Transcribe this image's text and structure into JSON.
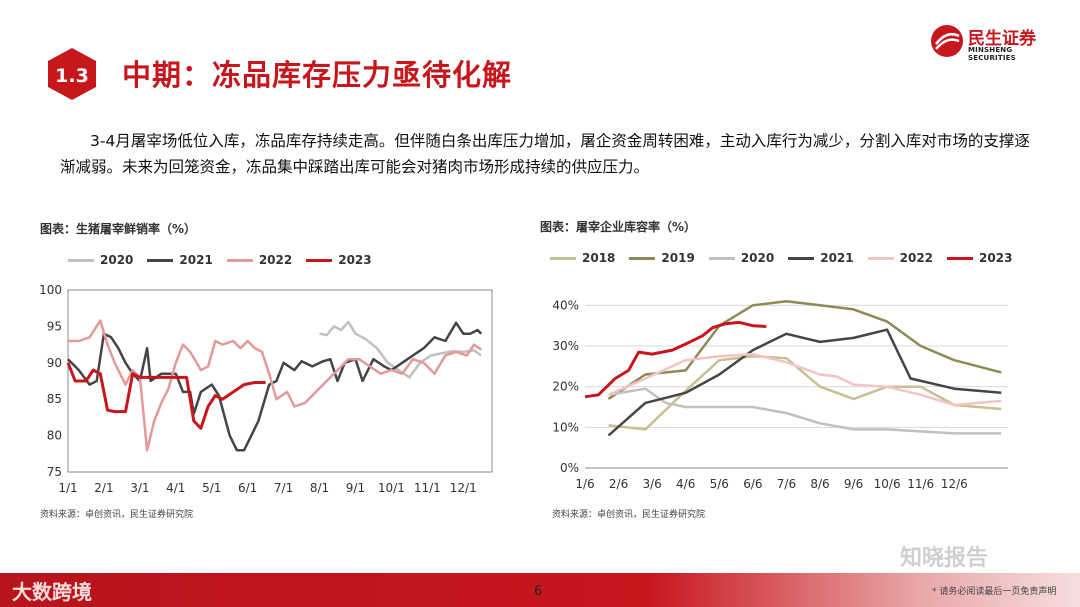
{
  "header": {
    "section_number": "1.3",
    "title": "中期：冻品库存压力亟待化解",
    "logo_name": "民生证券",
    "logo_en": "MINSHENG SECURITIES"
  },
  "intro_text": "3-4月屠宰场低位入库，冻品库存持续走高。但伴随白条出库压力增加，屠企资金周转困难，主动入库行为减少，分割入库对市场的支撑逐渐减弱。未来为回笼资金，冻品集中踩踏出库可能会对猪肉市场形成持续的供应压力。",
  "footer": {
    "page": "6",
    "disclaimer": "* 请务必阅读最后一页免责声明",
    "watermark_left": "大数跨境",
    "watermark_right": "知晓报告"
  },
  "colors": {
    "brand": "#c8161d",
    "y2018": "#c8c092",
    "y2019": "#8f8a55",
    "y2020": "#c0c0c0",
    "y2021": "#454545",
    "y2022": "#e29a98",
    "y2023": "#c8161d"
  },
  "chart_data": [
    {
      "type": "line",
      "title": "图表：生猪屠宰鲜销率（%）",
      "source": "资料来源：卓创资讯，民生证券研究院",
      "xlabel": "",
      "ylabel": "",
      "ylim": [
        75,
        100
      ],
      "yticks": [
        75,
        80,
        85,
        90,
        95,
        100
      ],
      "categories": [
        "1/1",
        "2/1",
        "3/1",
        "4/1",
        "5/1",
        "6/1",
        "7/1",
        "8/1",
        "9/1",
        "10/1",
        "11/1",
        "12/1"
      ],
      "series": [
        {
          "name": "2020",
          "color": "#c0c0c0",
          "points": [
            [
              7.0,
              94
            ],
            [
              7.2,
              93.8
            ],
            [
              7.4,
              95
            ],
            [
              7.6,
              94.5
            ],
            [
              7.8,
              95.6
            ],
            [
              8.0,
              94
            ],
            [
              8.3,
              93.2
            ],
            [
              8.6,
              92
            ],
            [
              8.9,
              90
            ],
            [
              9.2,
              89
            ],
            [
              9.5,
              88
            ],
            [
              9.8,
              90
            ],
            [
              10.1,
              91
            ],
            [
              10.4,
              91.3
            ],
            [
              10.7,
              91.6
            ],
            [
              11.0,
              91.5
            ],
            [
              11.3,
              91.7
            ],
            [
              11.5,
              91
            ]
          ]
        },
        {
          "name": "2021",
          "color": "#454545",
          "points": [
            [
              0,
              90.5
            ],
            [
              0.3,
              89
            ],
            [
              0.6,
              87
            ],
            [
              0.8,
              87.5
            ],
            [
              1.0,
              94
            ],
            [
              1.2,
              93.5
            ],
            [
              1.4,
              92
            ],
            [
              1.6,
              90
            ],
            [
              1.8,
              88.5
            ],
            [
              2.0,
              87.5
            ],
            [
              2.2,
              92
            ],
            [
              2.3,
              87.5
            ],
            [
              2.6,
              88.5
            ],
            [
              3.0,
              88.5
            ],
            [
              3.2,
              86
            ],
            [
              3.4,
              86
            ],
            [
              3.5,
              83
            ],
            [
              3.7,
              86
            ],
            [
              4.0,
              87
            ],
            [
              4.2,
              85.5
            ],
            [
              4.5,
              80
            ],
            [
              4.7,
              78
            ],
            [
              4.9,
              78
            ],
            [
              5.1,
              80
            ],
            [
              5.3,
              82
            ],
            [
              5.6,
              87
            ],
            [
              5.8,
              87.5
            ],
            [
              6.0,
              90
            ],
            [
              6.3,
              89
            ],
            [
              6.5,
              90.2
            ],
            [
              6.8,
              89.5
            ],
            [
              7.1,
              90.2
            ],
            [
              7.3,
              90.5
            ],
            [
              7.5,
              87.5
            ],
            [
              7.7,
              90
            ],
            [
              8.0,
              90.5
            ],
            [
              8.2,
              87.5
            ],
            [
              8.5,
              90.5
            ],
            [
              8.8,
              89.5
            ],
            [
              9.0,
              89
            ],
            [
              9.3,
              90
            ],
            [
              9.6,
              91
            ],
            [
              9.9,
              92
            ],
            [
              10.2,
              93.5
            ],
            [
              10.5,
              93
            ],
            [
              10.8,
              95.5
            ],
            [
              11.0,
              94
            ],
            [
              11.2,
              94
            ],
            [
              11.4,
              94.5
            ],
            [
              11.5,
              94
            ]
          ]
        },
        {
          "name": "2022",
          "color": "#e29a98",
          "points": [
            [
              0,
              93
            ],
            [
              0.3,
              93
            ],
            [
              0.6,
              93.5
            ],
            [
              0.9,
              95.8
            ],
            [
              1.1,
              92.5
            ],
            [
              1.3,
              90
            ],
            [
              1.6,
              87
            ],
            [
              1.8,
              89
            ],
            [
              2.0,
              88
            ],
            [
              2.2,
              78
            ],
            [
              2.4,
              82
            ],
            [
              2.6,
              84.5
            ],
            [
              2.8,
              86.5
            ],
            [
              3.0,
              90
            ],
            [
              3.2,
              92.5
            ],
            [
              3.4,
              91.5
            ],
            [
              3.7,
              89
            ],
            [
              3.9,
              89.5
            ],
            [
              4.1,
              93
            ],
            [
              4.3,
              92.5
            ],
            [
              4.6,
              93
            ],
            [
              4.8,
              92
            ],
            [
              5.0,
              93
            ],
            [
              5.2,
              92
            ],
            [
              5.4,
              91.5
            ],
            [
              5.6,
              88.5
            ],
            [
              5.8,
              85
            ],
            [
              6.1,
              86
            ],
            [
              6.3,
              84
            ],
            [
              6.6,
              84.5
            ],
            [
              6.9,
              86
            ],
            [
              7.2,
              87.5
            ],
            [
              7.5,
              89
            ],
            [
              7.8,
              90.5
            ],
            [
              8.1,
              90.5
            ],
            [
              8.4,
              89.5
            ],
            [
              8.7,
              88.5
            ],
            [
              9.0,
              89
            ],
            [
              9.3,
              88.5
            ],
            [
              9.6,
              90.5
            ],
            [
              9.9,
              90
            ],
            [
              10.2,
              88.5
            ],
            [
              10.5,
              91
            ],
            [
              10.8,
              91.5
            ],
            [
              11.1,
              91
            ],
            [
              11.3,
              92.5
            ],
            [
              11.5,
              91.8
            ]
          ]
        },
        {
          "name": "2023",
          "color": "#c8161d",
          "points": [
            [
              0,
              90
            ],
            [
              0.2,
              87.5
            ],
            [
              0.5,
              87.5
            ],
            [
              0.7,
              89
            ],
            [
              0.9,
              88.5
            ],
            [
              1.1,
              83.5
            ],
            [
              1.3,
              83.3
            ],
            [
              1.6,
              83.3
            ],
            [
              1.8,
              88.5
            ],
            [
              2.0,
              88
            ],
            [
              2.3,
              88
            ],
            [
              2.6,
              88
            ],
            [
              2.9,
              88
            ],
            [
              3.1,
              88
            ],
            [
              3.3,
              88
            ],
            [
              3.5,
              82
            ],
            [
              3.7,
              81
            ],
            [
              3.9,
              84
            ],
            [
              4.1,
              85.5
            ],
            [
              4.3,
              85
            ],
            [
              4.6,
              86
            ],
            [
              4.9,
              87
            ],
            [
              5.2,
              87.3
            ],
            [
              5.5,
              87.3
            ]
          ]
        }
      ]
    },
    {
      "type": "line",
      "title": "图表：屠宰企业库容率（%）",
      "source": "资料来源：卓创资讯，民生证券研究院",
      "xlabel": "",
      "ylabel": "",
      "ylim": [
        0,
        45
      ],
      "yticks": [
        0,
        10,
        20,
        30,
        40
      ],
      "ytick_labels": [
        "0%",
        "10%",
        "20%",
        "30%",
        "40%"
      ],
      "categories": [
        "1/6",
        "2/6",
        "3/6",
        "4/6",
        "5/6",
        "6/6",
        "7/6",
        "8/6",
        "9/6",
        "10/6",
        "11/6",
        "12/6"
      ],
      "series": [
        {
          "name": "2018",
          "color": "#c8c092",
          "points": [
            [
              0.7,
              10.5
            ],
            [
              1.8,
              9.5
            ],
            [
              3,
              19
            ],
            [
              4,
              26.5
            ],
            [
              5,
              27.5
            ],
            [
              6,
              27
            ],
            [
              7,
              20
            ],
            [
              8,
              17
            ],
            [
              9,
              20
            ],
            [
              10,
              20
            ],
            [
              11,
              15.5
            ],
            [
              12.4,
              14.5
            ]
          ]
        },
        {
          "name": "2019",
          "color": "#8f8a55",
          "points": [
            [
              0.7,
              17
            ],
            [
              1.8,
              23
            ],
            [
              3,
              24
            ],
            [
              4,
              35
            ],
            [
              5,
              40
            ],
            [
              6,
              41
            ],
            [
              7,
              40
            ],
            [
              8,
              39
            ],
            [
              9,
              36
            ],
            [
              10,
              30
            ],
            [
              11,
              26.5
            ],
            [
              12.4,
              23.5
            ]
          ]
        },
        {
          "name": "2020",
          "color": "#c0c0c0",
          "points": [
            [
              0.7,
              18
            ],
            [
              1.8,
              19.5
            ],
            [
              2.4,
              16
            ],
            [
              3,
              15
            ],
            [
              4,
              15
            ],
            [
              5,
              15
            ],
            [
              6,
              13.5
            ],
            [
              7,
              11
            ],
            [
              8,
              9.5
            ],
            [
              9,
              9.5
            ],
            [
              10,
              9
            ],
            [
              11,
              8.5
            ],
            [
              12.4,
              8.5
            ]
          ]
        },
        {
          "name": "2021",
          "color": "#454545",
          "points": [
            [
              0.7,
              8
            ],
            [
              1.8,
              16
            ],
            [
              3,
              18.5
            ],
            [
              4,
              23
            ],
            [
              5,
              29
            ],
            [
              6,
              33
            ],
            [
              7,
              31
            ],
            [
              8,
              32
            ],
            [
              9,
              34
            ],
            [
              9.7,
              22
            ],
            [
              11,
              19.5
            ],
            [
              12.4,
              18.5
            ]
          ]
        },
        {
          "name": "2022",
          "color": "#f2c4c3",
          "points": [
            [
              0.7,
              18
            ],
            [
              1.8,
              22
            ],
            [
              3,
              26.5
            ],
            [
              4,
              27.5
            ],
            [
              5,
              28
            ],
            [
              6,
              26
            ],
            [
              7,
              23
            ],
            [
              7.5,
              22.5
            ],
            [
              8,
              20.5
            ],
            [
              9,
              20
            ],
            [
              10,
              18
            ],
            [
              11,
              15.5
            ],
            [
              12.4,
              16.5
            ]
          ]
        },
        {
          "name": "2023",
          "color": "#c8161d",
          "points": [
            [
              0,
              17.5
            ],
            [
              0.4,
              18
            ],
            [
              0.9,
              22
            ],
            [
              1.3,
              24
            ],
            [
              1.6,
              28.5
            ],
            [
              2.0,
              28
            ],
            [
              2.6,
              29
            ],
            [
              3.0,
              30.5
            ],
            [
              3.5,
              32.5
            ],
            [
              3.8,
              34.5
            ],
            [
              4.2,
              35.5
            ],
            [
              4.6,
              35.8
            ],
            [
              5.0,
              35
            ],
            [
              5.4,
              34.8
            ]
          ]
        }
      ]
    }
  ]
}
